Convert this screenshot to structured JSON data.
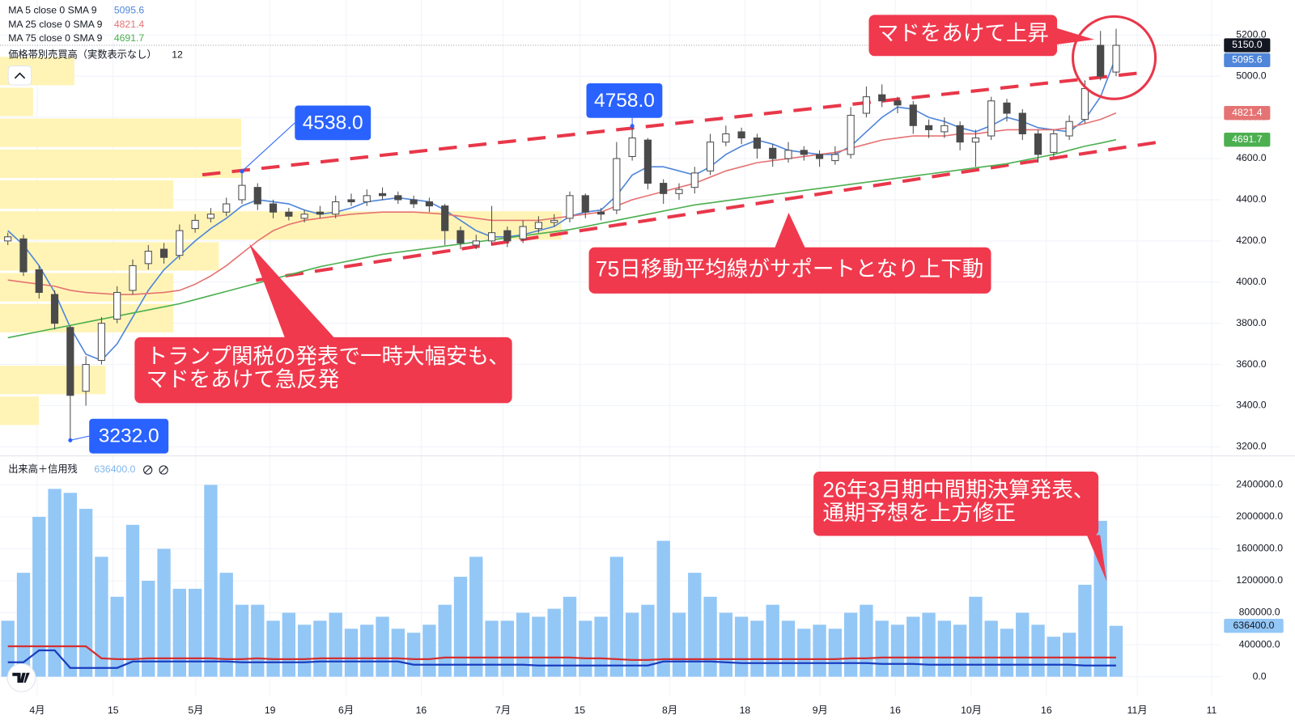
{
  "chart_data": [
    {
      "type": "candlestick",
      "ylim": [
        3160,
        5370
      ],
      "yticks": [
        {
          "value": 3200,
          "label": "3200.0"
        },
        {
          "value": 3400,
          "label": "3400.0"
        },
        {
          "value": 3600,
          "label": "3600.0"
        },
        {
          "value": 3800,
          "label": "3800.0"
        },
        {
          "value": 4000,
          "label": "4000.0"
        },
        {
          "value": 4200,
          "label": "4200.0"
        },
        {
          "value": 4400,
          "label": "4400.0"
        },
        {
          "value": 4600,
          "label": "4600.0"
        },
        {
          "value": 4800,
          "label": "4800.0"
        },
        {
          "value": 5000,
          "label": "5000.0"
        },
        {
          "value": 5200,
          "label": "5200.0"
        }
      ],
      "x_labels": [
        "4月",
        "15",
        "5月",
        "19",
        "6月",
        "16",
        "7月",
        "15",
        "8月",
        "18",
        "9月",
        "16",
        "10月",
        "16",
        "11月",
        "11"
      ],
      "grid": true,
      "up_color": "#ffffff",
      "down_color": "#4a4a4a",
      "open": [
        4200,
        4210,
        4060,
        3940,
        3780,
        3470,
        3620,
        3820,
        3960,
        4090,
        4160,
        4130,
        4260,
        4310,
        4340,
        4400,
        4460,
        4380,
        4340,
        4310,
        4340,
        4330,
        4400,
        4390,
        4430,
        4420,
        4400,
        4390,
        4370,
        4250,
        4180,
        4200,
        4250,
        4210,
        4260,
        4290,
        4310,
        4420,
        4340,
        4350,
        4610,
        4690,
        4480,
        4430,
        4460,
        4540,
        4680,
        4730,
        4700,
        4650,
        4600,
        4640,
        4620,
        4590,
        4620,
        4820,
        4910,
        4880,
        4860,
        4760,
        4730,
        4760,
        4680,
        4710,
        4870,
        4820,
        4720,
        4630,
        4710,
        4790,
        5150,
        5020
      ],
      "high": [
        4240,
        4230,
        4080,
        3960,
        3790,
        3640,
        3830,
        3980,
        4110,
        4180,
        4190,
        4280,
        4330,
        4360,
        4410,
        4538,
        4480,
        4400,
        4360,
        4350,
        4370,
        4420,
        4430,
        4450,
        4460,
        4440,
        4420,
        4410,
        4380,
        4270,
        4230,
        4370,
        4270,
        4300,
        4320,
        4330,
        4440,
        4430,
        4360,
        4680,
        4758,
        4700,
        4500,
        4480,
        4560,
        4720,
        4760,
        4750,
        4720,
        4670,
        4680,
        4660,
        4640,
        4660,
        4850,
        4950,
        4960,
        4900,
        4880,
        4790,
        4800,
        4780,
        4740,
        4900,
        4890,
        4840,
        4740,
        4740,
        4810,
        4980,
        5220,
        5230
      ],
      "low": [
        4180,
        4030,
        3920,
        3770,
        3232,
        3400,
        3600,
        3800,
        3940,
        4060,
        4090,
        4110,
        4240,
        4290,
        4320,
        4380,
        4350,
        4310,
        4300,
        4290,
        4310,
        4310,
        4370,
        4370,
        4400,
        4380,
        4360,
        4340,
        4180,
        4160,
        4160,
        4180,
        4170,
        4190,
        4240,
        4270,
        4290,
        4310,
        4300,
        4330,
        4590,
        4450,
        4380,
        4400,
        4430,
        4520,
        4660,
        4670,
        4600,
        4560,
        4580,
        4590,
        4560,
        4570,
        4600,
        4800,
        4850,
        4820,
        4720,
        4700,
        4700,
        4640,
        4560,
        4690,
        4780,
        4690,
        4580,
        4610,
        4690,
        4770,
        4980,
        5000
      ],
      "close": [
        4220,
        4050,
        3950,
        3800,
        3450,
        3600,
        3800,
        3950,
        4080,
        4150,
        4120,
        4250,
        4300,
        4330,
        4380,
        4470,
        4380,
        4340,
        4320,
        4330,
        4330,
        4390,
        4390,
        4420,
        4420,
        4400,
        4380,
        4370,
        4250,
        4190,
        4200,
        4240,
        4200,
        4270,
        4290,
        4300,
        4420,
        4340,
        4330,
        4600,
        4700,
        4480,
        4430,
        4450,
        4530,
        4680,
        4720,
        4700,
        4650,
        4600,
        4640,
        4620,
        4600,
        4620,
        4810,
        4900,
        4880,
        4860,
        4760,
        4740,
        4760,
        4680,
        4700,
        4880,
        4820,
        4720,
        4620,
        4720,
        4780,
        4940,
        5000,
        5150
      ],
      "last_price_label": "5150.0",
      "series": [
        {
          "name": "MA 5 close 0 SMA 9",
          "color": "#4f86d9",
          "values": [
            4250,
            4180,
            4080,
            3950,
            3780,
            3650,
            3620,
            3700,
            3830,
            3960,
            4060,
            4130,
            4200,
            4260,
            4310,
            4370,
            4400,
            4390,
            4380,
            4350,
            4330,
            4340,
            4360,
            4390,
            4400,
            4410,
            4400,
            4390,
            4350,
            4300,
            4250,
            4220,
            4220,
            4230,
            4250,
            4270,
            4320,
            4340,
            4350,
            4420,
            4520,
            4560,
            4560,
            4540,
            4520,
            4560,
            4620,
            4660,
            4690,
            4670,
            4640,
            4630,
            4620,
            4620,
            4660,
            4730,
            4800,
            4850,
            4840,
            4800,
            4780,
            4750,
            4730,
            4760,
            4800,
            4780,
            4750,
            4740,
            4730,
            4790,
            4900,
            5095.6
          ]
        },
        {
          "name": "MA 25 close 0 SMA 9",
          "color": "#e57373",
          "values": [
            4010,
            4000,
            3990,
            3980,
            3960,
            3950,
            3945,
            3940,
            3940,
            3945,
            3950,
            3960,
            3990,
            4030,
            4080,
            4140,
            4200,
            4250,
            4280,
            4300,
            4310,
            4320,
            4330,
            4335,
            4340,
            4340,
            4340,
            4335,
            4330,
            4320,
            4310,
            4300,
            4300,
            4300,
            4300,
            4310,
            4320,
            4330,
            4340,
            4370,
            4400,
            4420,
            4440,
            4460,
            4480,
            4510,
            4540,
            4560,
            4580,
            4590,
            4600,
            4610,
            4620,
            4630,
            4650,
            4670,
            4690,
            4700,
            4710,
            4710,
            4710,
            4720,
            4720,
            4730,
            4740,
            4740,
            4740,
            4740,
            4750,
            4770,
            4790,
            4821.4
          ]
        },
        {
          "name": "MA 75 close 0 SMA 9",
          "color": "#4caf50",
          "values": [
            3730,
            3745,
            3760,
            3775,
            3790,
            3805,
            3820,
            3835,
            3850,
            3865,
            3880,
            3895,
            3915,
            3935,
            3955,
            3975,
            3995,
            4015,
            4035,
            4055,
            4075,
            4090,
            4105,
            4120,
            4135,
            4145,
            4155,
            4165,
            4175,
            4185,
            4195,
            4205,
            4215,
            4225,
            4235,
            4245,
            4255,
            4270,
            4285,
            4300,
            4315,
            4330,
            4345,
            4360,
            4375,
            4385,
            4395,
            4405,
            4415,
            4425,
            4435,
            4445,
            4455,
            4465,
            4475,
            4485,
            4495,
            4505,
            4515,
            4525,
            4535,
            4545,
            4555,
            4565,
            4575,
            4590,
            4605,
            4620,
            4640,
            4660,
            4675,
            4691.7
          ]
        }
      ],
      "volume_profile": {
        "title": "価格帯別売買高（実数表示なし）",
        "rows": 12,
        "color": "#fff2a8",
        "bins": [
          3300,
          3450,
          3600,
          3750,
          3900,
          4050,
          4200,
          4350,
          4500,
          4650,
          4800,
          4950,
          5100
        ],
        "values": [
          47,
          128,
          0,
          210,
          210,
          265,
          680,
          210,
          292,
          292,
          40,
          90
        ]
      },
      "high_low_labels": [
        "4538.0",
        "4758.0",
        "3232.0"
      ],
      "annotations": [
        {
          "lines": [
            "トランプ関税の発表で一時大幅安も、",
            "マドをあけて急反発"
          ]
        },
        {
          "lines": [
            "75日移動平均線がサポートとなり上下動"
          ]
        },
        {
          "lines": [
            "マドをあけて上昇"
          ]
        },
        {
          "lines": [
            "26年3月期中間期決算発表、",
            "通期予想を上方修正"
          ]
        }
      ]
    },
    {
      "type": "bar",
      "title": "出来高＋信用残",
      "color": "#93c7f6",
      "ylim": [
        -250000,
        2690000
      ],
      "yticks": [
        {
          "value": 0,
          "label": "0.0"
        },
        {
          "value": 400000,
          "label": "400000.0"
        },
        {
          "value": 800000,
          "label": "800000.0"
        },
        {
          "value": 1200000,
          "label": "1200000.0"
        },
        {
          "value": 1600000,
          "label": "1600000.0"
        },
        {
          "value": 2000000,
          "label": "2000000.0"
        },
        {
          "value": 2400000,
          "label": "2400000.0"
        }
      ],
      "value_label": "636400.0",
      "values": [
        700000,
        1300000,
        2000000,
        2350000,
        2300000,
        2100000,
        1500000,
        1000000,
        1900000,
        1200000,
        1600000,
        1100000,
        1100000,
        2400000,
        1300000,
        900000,
        900000,
        700000,
        800000,
        650000,
        700000,
        800000,
        600000,
        650000,
        750000,
        600000,
        550000,
        650000,
        900000,
        1250000,
        1500000,
        700000,
        700000,
        800000,
        750000,
        850000,
        1000000,
        700000,
        750000,
        1500000,
        800000,
        900000,
        1700000,
        800000,
        1300000,
        1000000,
        800000,
        750000,
        700000,
        900000,
        700000,
        600000,
        650000,
        600000,
        800000,
        900000,
        700000,
        650000,
        750000,
        800000,
        700000,
        650000,
        1000000,
        700000,
        600000,
        800000,
        650000,
        500000,
        550000,
        1150000,
        1950000,
        636400
      ],
      "series": [
        {
          "color": "#d32f2f",
          "values": [
            380000,
            380000,
            380000,
            380000,
            380000,
            380000,
            230000,
            220000,
            220000,
            230000,
            230000,
            230000,
            230000,
            230000,
            220000,
            220000,
            230000,
            220000,
            220000,
            220000,
            230000,
            230000,
            230000,
            230000,
            230000,
            230000,
            220000,
            220000,
            240000,
            240000,
            240000,
            240000,
            240000,
            240000,
            240000,
            240000,
            240000,
            230000,
            230000,
            220000,
            210000,
            210000,
            220000,
            220000,
            220000,
            220000,
            220000,
            220000,
            220000,
            220000,
            220000,
            220000,
            220000,
            220000,
            230000,
            230000,
            240000,
            240000,
            240000,
            240000,
            240000,
            240000,
            240000,
            240000,
            240000,
            240000,
            240000,
            240000,
            240000,
            240000,
            240000,
            240000
          ]
        },
        {
          "color": "#1a3dbf",
          "values": [
            180000,
            180000,
            330000,
            330000,
            110000,
            110000,
            110000,
            110000,
            190000,
            190000,
            190000,
            190000,
            190000,
            190000,
            190000,
            180000,
            180000,
            180000,
            180000,
            180000,
            190000,
            190000,
            190000,
            190000,
            190000,
            190000,
            150000,
            150000,
            150000,
            150000,
            150000,
            150000,
            150000,
            150000,
            140000,
            140000,
            140000,
            140000,
            140000,
            140000,
            140000,
            140000,
            190000,
            190000,
            190000,
            190000,
            180000,
            170000,
            170000,
            170000,
            170000,
            170000,
            170000,
            170000,
            170000,
            170000,
            160000,
            160000,
            160000,
            150000,
            150000,
            150000,
            150000,
            150000,
            150000,
            150000,
            150000,
            150000,
            150000,
            140000,
            140000,
            140000
          ]
        }
      ]
    }
  ]
}
